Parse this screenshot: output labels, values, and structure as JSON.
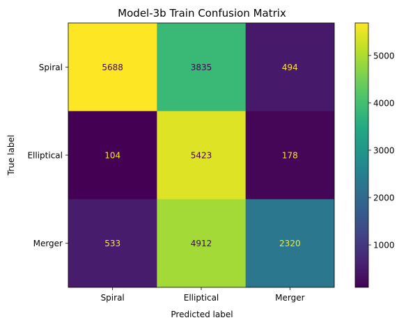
{
  "chart_data": {
    "type": "heatmap",
    "title": "Model-3b Train Confusion Matrix",
    "xlabel": "Predicted label",
    "ylabel": "True label",
    "x_categories": [
      "Spiral",
      "Elliptical",
      "Merger"
    ],
    "y_categories": [
      "Spiral",
      "Elliptical",
      "Merger"
    ],
    "values": [
      [
        5688,
        3835,
        494
      ],
      [
        104,
        5423,
        178
      ],
      [
        533,
        4912,
        2320
      ]
    ],
    "colormap": "viridis",
    "colorbar": {
      "range": [
        104,
        5688
      ],
      "ticks": [
        1000,
        2000,
        3000,
        4000,
        5000
      ],
      "tick_labels": [
        "1000",
        "2000",
        "3000",
        "4000",
        "5000"
      ]
    },
    "text_colors": {
      "dark_cell": "#fde725",
      "light_cell": "#440154"
    }
  }
}
